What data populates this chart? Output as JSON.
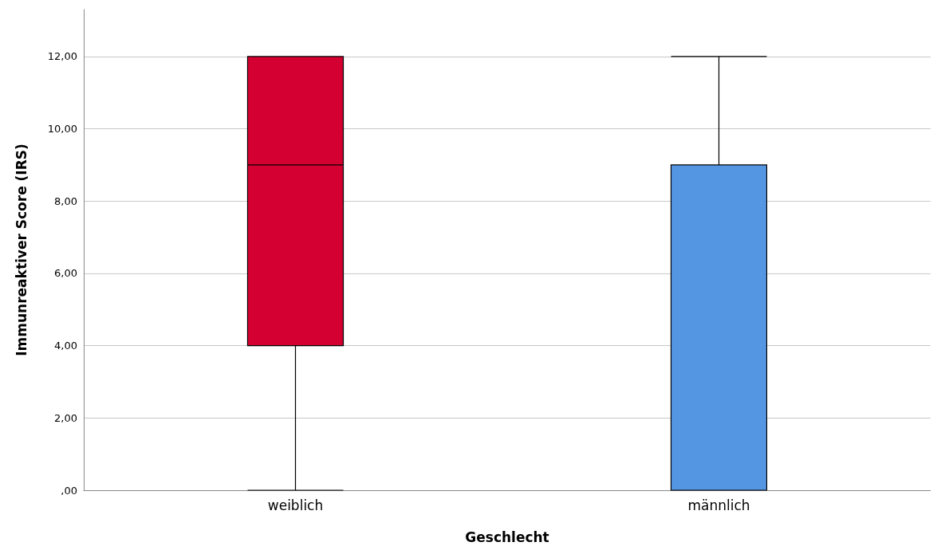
{
  "chart_data": {
    "type": "box",
    "xlabel": "Geschlecht",
    "ylabel": "Immunreaktiver Score (IRS)",
    "categories": [
      "weiblich",
      "männlich"
    ],
    "boxes": [
      {
        "low": 0,
        "q1": 4,
        "median": 9,
        "q3": 12,
        "high": 12
      },
      {
        "low": 0,
        "q1": 0,
        "median": 9,
        "q3": 9,
        "high": 12
      }
    ],
    "colors": [
      "#d50032",
      "#5596e3"
    ],
    "ylim": [
      0,
      13.3
    ],
    "yticks": [
      {
        "value": 0,
        "label": ",00"
      },
      {
        "value": 2,
        "label": "2,00"
      },
      {
        "value": 4,
        "label": "4,00"
      },
      {
        "value": 6,
        "label": "6,00"
      },
      {
        "value": 8,
        "label": "8,00"
      },
      {
        "value": 10,
        "label": "10,00"
      },
      {
        "value": 12,
        "label": "12,00"
      }
    ],
    "grid": "y"
  }
}
